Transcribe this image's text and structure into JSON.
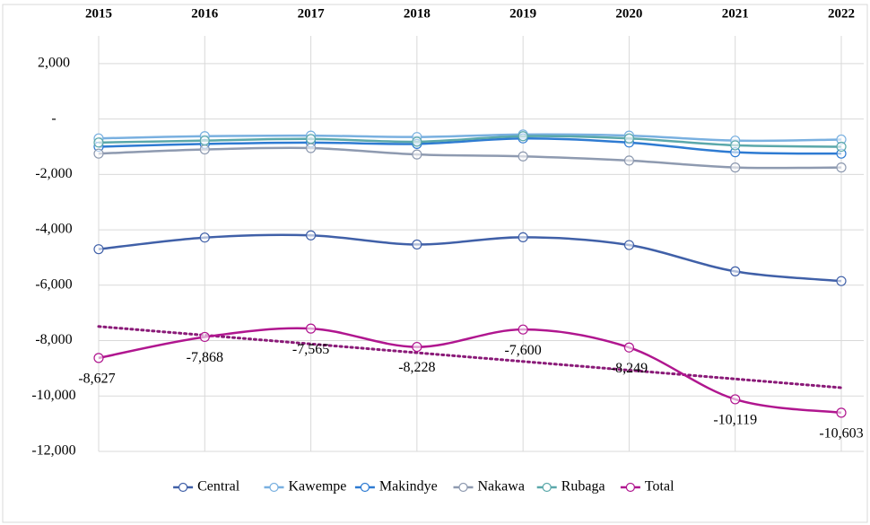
{
  "chart_data": {
    "type": "line",
    "categories": [
      "2015",
      "2016",
      "2017",
      "2018",
      "2019",
      "2020",
      "2021",
      "2022"
    ],
    "series": [
      {
        "name": "Central",
        "color": "#4060a8",
        "values": [
          -4700,
          -4280,
          -4200,
          -4530,
          -4270,
          -4550,
          -5500,
          -5850
        ]
      },
      {
        "name": "Kawempe",
        "color": "#79b0e0",
        "values": [
          -700,
          -620,
          -600,
          -650,
          -560,
          -600,
          -780,
          -740
        ]
      },
      {
        "name": "Makindye",
        "color": "#2e7bd2",
        "values": [
          -1000,
          -900,
          -850,
          -900,
          -700,
          -850,
          -1200,
          -1250
        ]
      },
      {
        "name": "Nakawa",
        "color": "#8e9ab0",
        "values": [
          -1250,
          -1100,
          -1050,
          -1280,
          -1350,
          -1500,
          -1750,
          -1750
        ]
      },
      {
        "name": "Rubaga",
        "color": "#5aa8aa",
        "values": [
          -850,
          -780,
          -720,
          -820,
          -620,
          -700,
          -950,
          -1000
        ]
      },
      {
        "name": "Total",
        "color": "#b0168f",
        "values": [
          -8627,
          -7868,
          -7565,
          -8228,
          -7600,
          -8249,
          -10119,
          -10603
        ],
        "value_labels": [
          "-8,627",
          "-7,868",
          "-7,565",
          "-8,228",
          "-7,600",
          "-8,249",
          "-10,119",
          "-10,603"
        ]
      }
    ],
    "trendline": {
      "color": "#8a1a78",
      "values": [
        -7490,
        -9700
      ]
    },
    "ylim": [
      -12000,
      3000
    ],
    "yticks": [
      {
        "value": -12000,
        "label": "-12,000"
      },
      {
        "value": -10000,
        "label": "-10,000"
      },
      {
        "value": -8000,
        "label": "-8,000"
      },
      {
        "value": -6000,
        "label": "-6,000"
      },
      {
        "value": -4000,
        "label": "-4,000"
      },
      {
        "value": -2000,
        "label": "-2,000"
      },
      {
        "value": 0,
        "label": "-"
      },
      {
        "value": 2000,
        "label": "2,000"
      }
    ],
    "grid": true,
    "legend": "bottom"
  }
}
